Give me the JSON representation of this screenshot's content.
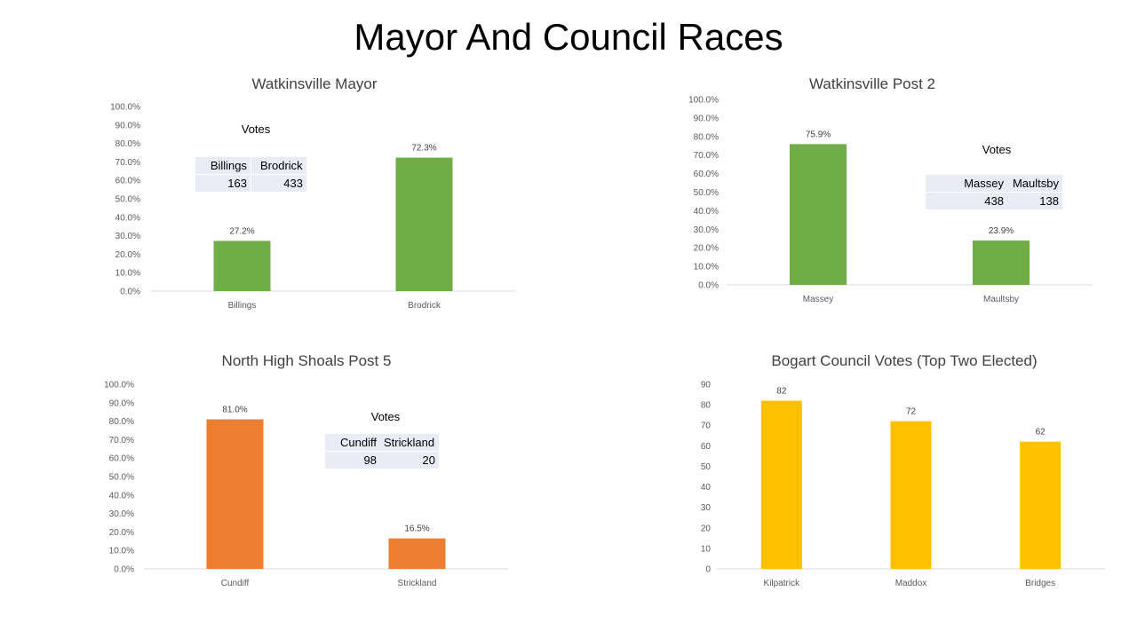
{
  "slide": {
    "title": "Mayor And Council Races"
  },
  "colors": {
    "green": "#70ad47",
    "orange": "#ed7d31",
    "yellow": "#ffc000",
    "axis": "#d9d9d9",
    "table_fill": "#e9ebf5"
  },
  "charts": [
    {
      "id": "watkinsville-mayor",
      "title": "Watkinsville Mayor",
      "color": "green",
      "votes": {
        "title": "Votes",
        "headers": [
          "Billings",
          "Brodrick"
        ],
        "values": [
          "163",
          "433"
        ]
      }
    },
    {
      "id": "watkinsville-post-2",
      "title": "Watkinsville Post 2",
      "color": "green",
      "votes": {
        "title": "Votes",
        "headers": [
          "Massey",
          "Maultsby"
        ],
        "values": [
          "438",
          "138"
        ]
      }
    },
    {
      "id": "north-high-shoals-post-5",
      "title": "North High Shoals Post 5",
      "color": "orange",
      "votes": {
        "title": "Votes",
        "headers": [
          "Cundiff",
          "Strickland"
        ],
        "values": [
          "98",
          "20"
        ]
      }
    },
    {
      "id": "bogart-council",
      "title": "Bogart Council Votes (Top Two Elected)",
      "color": "yellow"
    }
  ],
  "chart_data": [
    {
      "type": "bar",
      "title": "Watkinsville Mayor",
      "categories": [
        "Billings",
        "Brodrick"
      ],
      "values": [
        27.2,
        72.3
      ],
      "data_labels": [
        "27.2%",
        "72.3%"
      ],
      "yticks": [
        "0.0%",
        "10.0%",
        "20.0%",
        "30.0%",
        "40.0%",
        "50.0%",
        "60.0%",
        "70.0%",
        "80.0%",
        "90.0%",
        "100.0%"
      ],
      "ylim": [
        0,
        100
      ],
      "grid": false,
      "legend": "none"
    },
    {
      "type": "bar",
      "title": "Watkinsville Post 2",
      "categories": [
        "Massey",
        "Maultsby"
      ],
      "values": [
        75.9,
        23.9
      ],
      "data_labels": [
        "75.9%",
        "23.9%"
      ],
      "yticks": [
        "0.0%",
        "10.0%",
        "20.0%",
        "30.0%",
        "40.0%",
        "50.0%",
        "60.0%",
        "70.0%",
        "80.0%",
        "90.0%",
        "100.0%"
      ],
      "ylim": [
        0,
        100
      ],
      "grid": false,
      "legend": "none"
    },
    {
      "type": "bar",
      "title": "North High Shoals Post 5",
      "categories": [
        "Cundiff",
        "Strickland"
      ],
      "values": [
        81.0,
        16.5
      ],
      "data_labels": [
        "81.0%",
        "16.5%"
      ],
      "yticks": [
        "0.0%",
        "10.0%",
        "20.0%",
        "30.0%",
        "40.0%",
        "50.0%",
        "60.0%",
        "70.0%",
        "80.0%",
        "90.0%",
        "100.0%"
      ],
      "ylim": [
        0,
        100
      ],
      "grid": false,
      "legend": "none"
    },
    {
      "type": "bar",
      "title": "Bogart Council Votes (Top Two Elected)",
      "categories": [
        "Kilpatrick",
        "Maddox",
        "Bridges"
      ],
      "values": [
        82,
        72,
        62
      ],
      "data_labels": [
        "82",
        "72",
        "62"
      ],
      "yticks": [
        "0",
        "10",
        "20",
        "30",
        "40",
        "50",
        "60",
        "70",
        "80",
        "90"
      ],
      "ylim": [
        0,
        90
      ],
      "grid": false,
      "legend": "none"
    }
  ]
}
